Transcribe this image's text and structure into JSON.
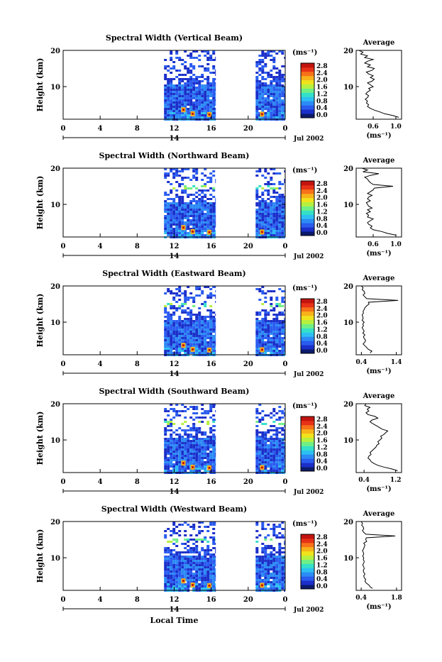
{
  "figure": {
    "footer_xlabel": "Local Time",
    "date_label": "Jul 2002",
    "unit_label": "(ms⁻¹)",
    "avg_title": "Average",
    "avg_xlabel": "(ms⁻¹)",
    "ylabel": "Height (km)"
  },
  "colorbar": {
    "ticks": [
      "2.8",
      "2.4",
      "2.0",
      "1.6",
      "1.2",
      "0.8",
      "0.4",
      "0.0"
    ],
    "colors": [
      "#0b1a6b",
      "#1b2fc9",
      "#2a5cf0",
      "#2c8bf5",
      "#2cc0f2",
      "#35e0c8",
      "#6fef86",
      "#b6f040",
      "#f0e21c",
      "#f8b21a",
      "#f77218",
      "#e83218",
      "#c2140f"
    ]
  },
  "chart_data": [
    {
      "type": "heatmap",
      "title": "Spectral Width (Vertical Beam)",
      "xlabel": "Local Time",
      "ylabel": "Height (km)",
      "x_ticks": [
        "0",
        "4",
        "8",
        "12",
        "16",
        "20",
        "0"
      ],
      "xlim": [
        0,
        24
      ],
      "y_ticks": [
        "20",
        "10"
      ],
      "ylim": [
        1,
        20
      ],
      "day_marker": "14",
      "data_windows_hours": [
        [
          10.9,
          16.5
        ],
        [
          20.8,
          24
        ]
      ],
      "colorbar": {
        "label": "(ms⁻¹)",
        "range": [
          0,
          2.8
        ]
      },
      "average_profile": {
        "title": "Average",
        "xlabel": "(ms⁻¹)",
        "x_ticks": [
          "0.6",
          "1.0"
        ],
        "xlim": [
          0.3,
          1.1
        ],
        "y_ticks": [
          "20",
          "10"
        ],
        "ylim": [
          1,
          20
        ],
        "height_km": [
          1.5,
          2,
          2.5,
          3,
          3.5,
          4,
          4.5,
          5,
          5.5,
          6,
          6.5,
          7,
          7.5,
          8,
          8.5,
          9,
          9.5,
          10,
          10.5,
          11,
          11.5,
          12,
          12.5,
          13,
          13.5,
          14,
          14.5,
          15,
          15.5,
          16,
          16.5,
          17,
          17.5,
          18,
          18.5,
          19,
          19.5,
          20
        ],
        "width": [
          1.05,
          0.95,
          0.8,
          0.72,
          0.62,
          0.55,
          0.5,
          0.52,
          0.48,
          0.5,
          0.46,
          0.5,
          0.52,
          0.47,
          0.5,
          0.55,
          0.52,
          0.6,
          0.55,
          0.5,
          0.58,
          0.62,
          0.55,
          0.6,
          0.52,
          0.48,
          0.58,
          0.62,
          0.5,
          0.55,
          0.45,
          0.5,
          0.6,
          0.45,
          0.5,
          0.38,
          0.42,
          0.35
        ]
      }
    },
    {
      "type": "heatmap",
      "title": "Spectral Width (Northward Beam)",
      "xlabel": "Local Time",
      "ylabel": "Height (km)",
      "x_ticks": [
        "0",
        "4",
        "8",
        "12",
        "16",
        "20",
        "0"
      ],
      "xlim": [
        0,
        24
      ],
      "y_ticks": [
        "20",
        "10"
      ],
      "ylim": [
        1,
        20
      ],
      "day_marker": "14",
      "data_windows_hours": [
        [
          10.9,
          16.5
        ],
        [
          20.8,
          24
        ]
      ],
      "colorbar": {
        "label": "(ms⁻¹)",
        "range": [
          0,
          2.8
        ]
      },
      "average_profile": {
        "title": "Average",
        "xlabel": "(ms⁻¹)",
        "x_ticks": [
          "0.6",
          "1.0"
        ],
        "xlim": [
          0.3,
          1.1
        ],
        "y_ticks": [
          "20",
          "10"
        ],
        "ylim": [
          1,
          20
        ],
        "height_km": [
          1.5,
          2,
          2.5,
          3,
          3.5,
          4,
          4.5,
          5,
          5.5,
          6,
          6.5,
          7,
          7.5,
          8,
          8.5,
          9,
          9.5,
          10,
          10.5,
          11,
          11.5,
          12,
          12.5,
          13,
          13.5,
          14,
          14.5,
          15,
          15.5,
          16,
          16.5,
          17,
          17.5,
          18,
          18.5,
          19,
          19.5,
          20
        ],
        "width": [
          1.0,
          0.85,
          0.75,
          0.6,
          0.55,
          0.58,
          0.52,
          0.5,
          0.55,
          0.6,
          0.5,
          0.52,
          0.48,
          0.55,
          0.5,
          0.58,
          0.52,
          0.5,
          0.48,
          0.55,
          0.5,
          0.52,
          0.58,
          0.5,
          0.55,
          0.6,
          0.62,
          0.95,
          0.6,
          0.55,
          0.52,
          0.5,
          0.45,
          0.55,
          0.7,
          0.42,
          0.5,
          0.4
        ]
      }
    },
    {
      "type": "heatmap",
      "title": "Spectral Width (Eastward Beam)",
      "xlabel": "Local Time",
      "ylabel": "Height (km)",
      "x_ticks": [
        "0",
        "4",
        "8",
        "12",
        "16",
        "20",
        "0"
      ],
      "xlim": [
        0,
        24
      ],
      "y_ticks": [
        "20",
        "10"
      ],
      "ylim": [
        1,
        20
      ],
      "day_marker": "14",
      "data_windows_hours": [
        [
          10.9,
          16.5
        ],
        [
          20.8,
          24
        ]
      ],
      "colorbar": {
        "label": "(ms⁻¹)",
        "range": [
          0,
          2.8
        ]
      },
      "average_profile": {
        "title": "Average",
        "xlabel": "(ms⁻¹)",
        "x_ticks": [
          "0.4",
          "1.4"
        ],
        "xlim": [
          0.25,
          1.55
        ],
        "y_ticks": [
          "20",
          "10"
        ],
        "ylim": [
          1,
          20
        ],
        "height_km": [
          1.5,
          2,
          2.5,
          3,
          3.5,
          4,
          4.5,
          5,
          5.5,
          6,
          6.5,
          7,
          7.5,
          8,
          8.5,
          9,
          9.5,
          10,
          10.5,
          11,
          11.5,
          12,
          12.5,
          13,
          13.5,
          14,
          14.5,
          15,
          15.5,
          16,
          16.5,
          17,
          17.5,
          18,
          18.5,
          19,
          19.5,
          20
        ],
        "width": [
          0.65,
          0.7,
          0.6,
          0.55,
          0.5,
          0.45,
          0.5,
          0.52,
          0.48,
          0.46,
          0.5,
          0.44,
          0.48,
          0.45,
          0.42,
          0.46,
          0.44,
          0.48,
          0.42,
          0.45,
          0.44,
          0.42,
          0.46,
          0.45,
          0.48,
          0.5,
          0.55,
          0.62,
          0.6,
          1.45,
          0.55,
          0.5,
          0.45,
          0.5,
          0.48,
          0.42,
          0.45,
          0.4
        ]
      }
    },
    {
      "type": "heatmap",
      "title": "Spectral Width (Southward Beam)",
      "xlabel": "Local Time",
      "ylabel": "Height (km)",
      "x_ticks": [
        "0",
        "4",
        "8",
        "12",
        "16",
        "20",
        "0"
      ],
      "xlim": [
        0,
        24
      ],
      "y_ticks": [
        "20",
        "10"
      ],
      "ylim": [
        1,
        20
      ],
      "day_marker": "14",
      "data_windows_hours": [
        [
          10.9,
          16.5
        ],
        [
          20.8,
          24
        ]
      ],
      "colorbar": {
        "label": "(ms⁻¹)",
        "range": [
          0,
          2.8
        ]
      },
      "average_profile": {
        "title": "Average",
        "xlabel": "(ms⁻¹)",
        "x_ticks": [
          "0.4",
          "1.2"
        ],
        "xlim": [
          0.2,
          1.35
        ],
        "y_ticks": [
          "20",
          "10"
        ],
        "ylim": [
          1,
          20
        ],
        "height_km": [
          1.5,
          2,
          2.5,
          3,
          3.5,
          4,
          4.5,
          5,
          5.5,
          6,
          6.5,
          7,
          7.5,
          8,
          8.5,
          9,
          9.5,
          10,
          10.5,
          11,
          11.5,
          12,
          12.5,
          13,
          13.5,
          14,
          14.5,
          15,
          15.5,
          16,
          16.5,
          17,
          17.5,
          18,
          18.5,
          19,
          19.5,
          20
        ],
        "width": [
          1.25,
          1.1,
          0.9,
          0.75,
          0.65,
          0.58,
          0.55,
          0.5,
          0.52,
          0.58,
          0.55,
          0.6,
          0.65,
          0.7,
          0.72,
          0.78,
          0.75,
          0.8,
          0.85,
          0.82,
          0.9,
          0.95,
          1.0,
          0.85,
          0.78,
          0.7,
          0.62,
          0.55,
          0.6,
          0.75,
          0.68,
          0.5,
          0.45,
          0.52,
          0.48,
          0.55,
          0.42,
          0.45
        ]
      }
    },
    {
      "type": "heatmap",
      "title": "Spectral Width (Westward Beam)",
      "xlabel": "Local Time",
      "ylabel": "Height (km)",
      "x_ticks": [
        "0",
        "4",
        "8",
        "12",
        "16",
        "20",
        "0"
      ],
      "xlim": [
        0,
        24
      ],
      "y_ticks": [
        "20",
        "10"
      ],
      "ylim": [
        1,
        20
      ],
      "day_marker": "14",
      "data_windows_hours": [
        [
          10.9,
          16.5
        ],
        [
          20.8,
          24
        ]
      ],
      "colorbar": {
        "label": "(ms⁻¹)",
        "range": [
          0,
          2.8
        ]
      },
      "average_profile": {
        "title": "Average",
        "xlabel": "(ms⁻¹)",
        "x_ticks": [
          "0.4",
          "1.8"
        ],
        "xlim": [
          0.2,
          2.0
        ],
        "y_ticks": [
          "20",
          "10"
        ],
        "ylim": [
          1,
          20
        ],
        "height_km": [
          1.5,
          2,
          2.5,
          3,
          3.5,
          4,
          4.5,
          5,
          5.5,
          6,
          6.5,
          7,
          7.5,
          8,
          8.5,
          9,
          9.5,
          10,
          10.5,
          11,
          11.5,
          12,
          12.5,
          13,
          13.5,
          14,
          14.5,
          15,
          15.5,
          16,
          16.5,
          17,
          17.5,
          18,
          18.5,
          19,
          19.5,
          20
        ],
        "width": [
          0.85,
          0.75,
          0.7,
          0.6,
          0.55,
          0.58,
          0.52,
          0.5,
          0.55,
          0.5,
          0.48,
          0.52,
          0.5,
          0.46,
          0.5,
          0.52,
          0.48,
          0.5,
          0.46,
          0.5,
          0.48,
          0.45,
          0.5,
          0.52,
          0.55,
          0.5,
          0.62,
          0.58,
          0.6,
          1.75,
          0.58,
          0.5,
          0.45,
          0.5,
          0.48,
          0.42,
          0.45,
          0.4
        ]
      }
    }
  ]
}
